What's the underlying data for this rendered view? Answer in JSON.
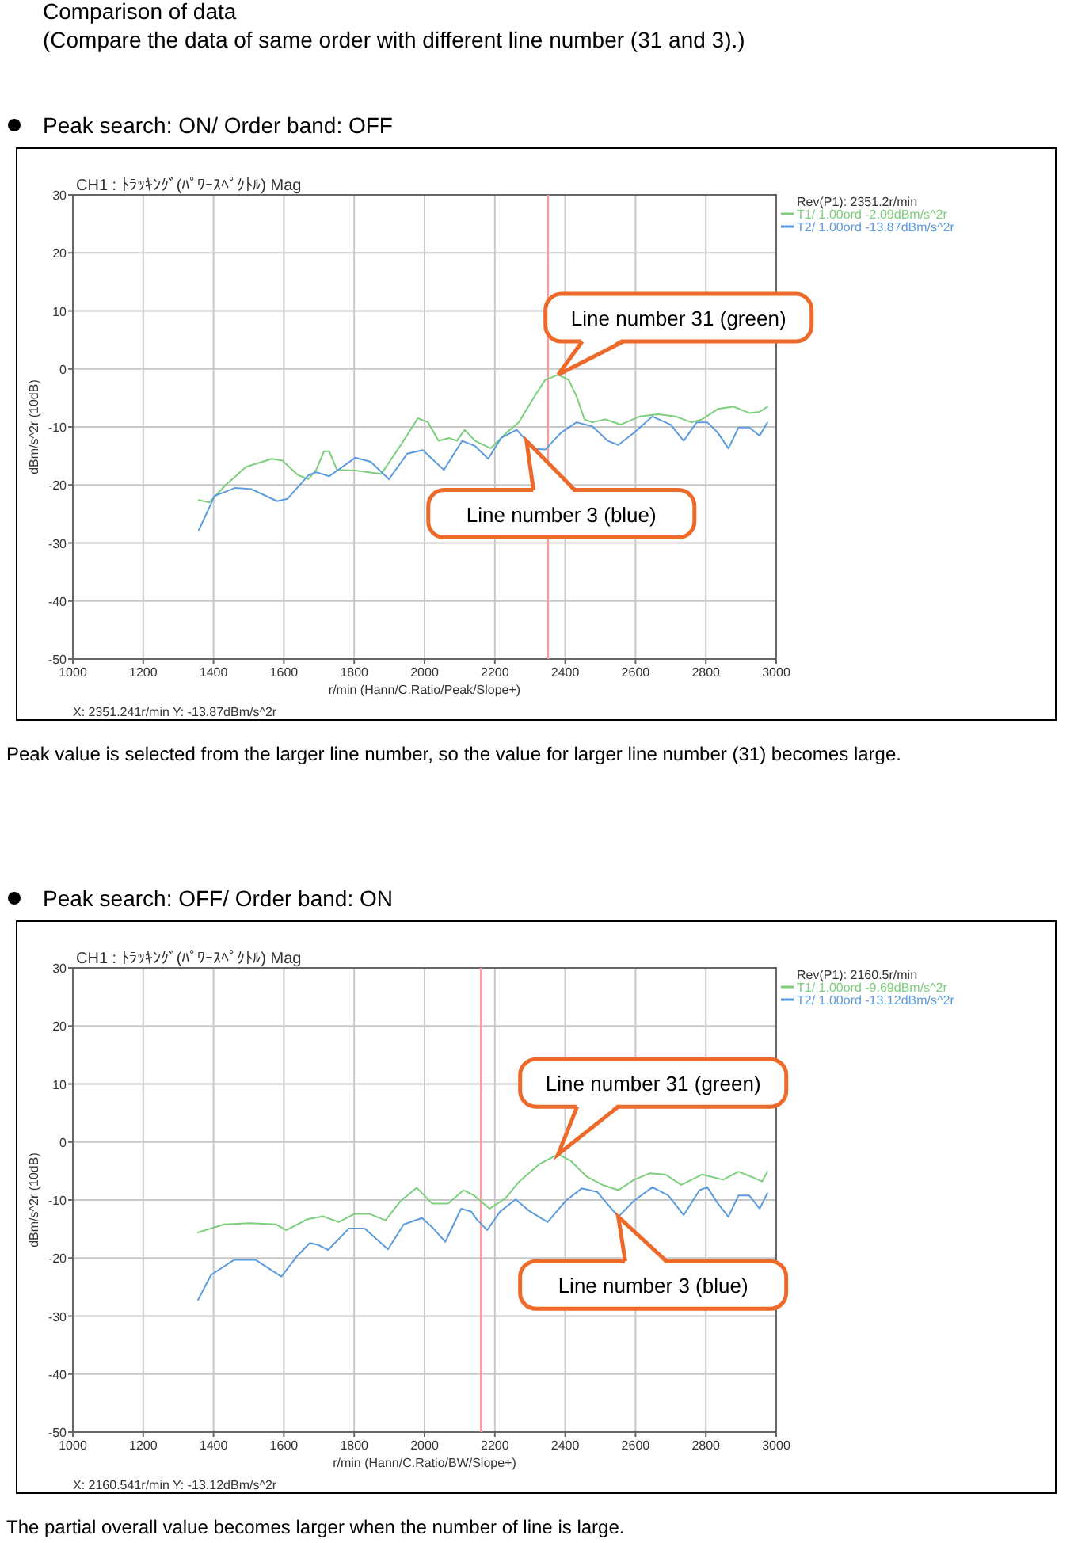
{
  "chart_data": [
    {
      "type": "line",
      "title": "Peak search: ON/ Order band: OFF",
      "subtitle": "CH1 : ﾄﾗｯｷﾝｸﾞ(ﾊﾟﾜｰｽﾍﾟｸﾄﾙ) Mag",
      "xlabel": "r/min (Hann/C.Ratio/Peak/Slope+)",
      "ylabel": "dBm/s^2r (10dB)",
      "legend_title": "Rev(P1): 2351.2r/min",
      "xlim": [
        1000,
        3000
      ],
      "xticks": [
        1000,
        1200,
        1400,
        1600,
        1800,
        2000,
        2200,
        2400,
        2600,
        2800,
        3000
      ],
      "ylim": [
        -50,
        30
      ],
      "yticks": [
        -50,
        -40,
        -30,
        -20,
        -10,
        0,
        10,
        20,
        30
      ],
      "grid": true,
      "legend": "top right",
      "series": [
        {
          "name": "T1/ 1.00ord -2.09dBm/s^2r",
          "color": "#7ccf7c",
          "x": [
            1358,
            1388,
            1433,
            1492,
            1566,
            1596,
            1640,
            1670,
            1692,
            1714,
            1729,
            1751,
            1803,
            1877,
            1936,
            1981,
            2010,
            2040,
            2070,
            2092,
            2114,
            2144,
            2188,
            2233,
            2268,
            2313,
            2343,
            2380,
            2410,
            2432,
            2455,
            2477,
            2514,
            2558,
            2611,
            2663,
            2715,
            2759,
            2789,
            2834,
            2879,
            2923,
            2953,
            2975
          ],
          "values": [
            -22.6,
            -23,
            -20.1,
            -16.9,
            -15.5,
            -15.8,
            -18.3,
            -19,
            -17.4,
            -14.2,
            -14.2,
            -17.4,
            -17.5,
            -18.1,
            -12.8,
            -8.5,
            -9.2,
            -12.4,
            -11.9,
            -12.4,
            -10.5,
            -12.4,
            -13.7,
            -11,
            -9.2,
            -4.7,
            -1.9,
            -1,
            -1.9,
            -4.7,
            -8.7,
            -9.2,
            -8.7,
            -9.6,
            -8.2,
            -7.8,
            -8.2,
            -9.2,
            -8.7,
            -6.9,
            -6.5,
            -7.6,
            -7.4,
            -6.5
          ]
        },
        {
          "name": "T2/ 1.00ord -13.87dBm/s^2r",
          "color": "#5b9be0",
          "x": [
            1358,
            1403,
            1462,
            1507,
            1581,
            1610,
            1670,
            1692,
            1729,
            1803,
            1847,
            1899,
            1951,
            1995,
            2055,
            2107,
            2144,
            2181,
            2218,
            2262,
            2290,
            2313,
            2343,
            2388,
            2432,
            2477,
            2521,
            2551,
            2596,
            2648,
            2700,
            2737,
            2774,
            2804,
            2834,
            2864,
            2893,
            2923,
            2953,
            2975
          ],
          "values": [
            -27.8,
            -21.9,
            -20.5,
            -20.7,
            -22.8,
            -22.4,
            -18.3,
            -17.8,
            -18.5,
            -15.3,
            -16,
            -19,
            -14.6,
            -14,
            -17.4,
            -12.4,
            -13.3,
            -15.5,
            -11.9,
            -10.5,
            -12.4,
            -13.8,
            -13.9,
            -11,
            -9.2,
            -9.9,
            -12.4,
            -13.1,
            -11,
            -8.2,
            -9.6,
            -12.4,
            -9.2,
            -9.2,
            -11,
            -13.7,
            -10.1,
            -10.1,
            -11.5,
            -9.2
          ]
        }
      ],
      "ref_lines": [
        {
          "axis": "x",
          "value": 2351.2,
          "color": "#ff9a9a"
        }
      ],
      "annotations": [
        "Comparison of data",
        "(Compare the data of same order with different line number (31 and 3).)",
        "X: 2351.241r/min Y: -13.87dBm/s^2r",
        "Peak value is selected from the larger line number, so the value for larger line number (31) becomes large.",
        {
          "text": "Line number 31 (green)",
          "x": 2380,
          "y": -1
        },
        {
          "text": "Line number 3 (blue)",
          "x": 2290,
          "y": -12.4
        }
      ]
    },
    {
      "type": "line",
      "title": "Peak search: OFF/ Order band: ON",
      "subtitle": "CH1 : ﾄﾗｯｷﾝｸﾞ(ﾊﾟﾜｰｽﾍﾟｸﾄﾙ) Mag",
      "xlabel": "r/min (Hann/C.Ratio/BW/Slope+)",
      "ylabel": "dBm/s^2r (10dB)",
      "legend_title": "Rev(P1): 2160.5r/min",
      "xlim": [
        1000,
        3000
      ],
      "xticks": [
        1000,
        1200,
        1400,
        1600,
        1800,
        2000,
        2200,
        2400,
        2600,
        2800,
        3000
      ],
      "ylim": [
        -50,
        30
      ],
      "yticks": [
        -50,
        -40,
        -30,
        -20,
        -10,
        0,
        10,
        20,
        30
      ],
      "grid": true,
      "legend": "top right",
      "series": [
        {
          "name": "T1/ 1.00ord -9.69dBm/s^2r",
          "color": "#7ccf7c",
          "x": [
            1356,
            1430,
            1504,
            1578,
            1607,
            1667,
            1711,
            1756,
            1800,
            1844,
            1889,
            1933,
            1978,
            2022,
            2067,
            2111,
            2141,
            2185,
            2230,
            2268,
            2327,
            2380,
            2417,
            2462,
            2506,
            2551,
            2596,
            2640,
            2685,
            2730,
            2789,
            2849,
            2893,
            2930,
            2960,
            2975
          ],
          "values": [
            -15.6,
            -14.2,
            -14,
            -14.2,
            -15.2,
            -13.3,
            -12.8,
            -13.8,
            -12.4,
            -12.4,
            -13.5,
            -10.1,
            -7.9,
            -10.6,
            -10.6,
            -8.3,
            -9.2,
            -11.5,
            -9.7,
            -6.9,
            -3.8,
            -2.1,
            -3.3,
            -6,
            -7.4,
            -8.3,
            -6.5,
            -5.4,
            -5.6,
            -7.4,
            -5.6,
            -6.5,
            -5.1,
            -6,
            -6.8,
            -5.1
          ]
        },
        {
          "name": "T2/ 1.00ord -13.12dBm/s^2r",
          "color": "#5b9be0",
          "x": [
            1356,
            1393,
            1459,
            1519,
            1593,
            1637,
            1674,
            1696,
            1726,
            1785,
            1830,
            1896,
            1941,
            1993,
            2022,
            2059,
            2104,
            2133,
            2148,
            2178,
            2215,
            2259,
            2298,
            2350,
            2402,
            2447,
            2491,
            2551,
            2596,
            2648,
            2693,
            2737,
            2782,
            2804,
            2834,
            2864,
            2893,
            2923,
            2953,
            2975
          ],
          "values": [
            -27.2,
            -22.9,
            -20.3,
            -20.3,
            -23.2,
            -19.7,
            -17.4,
            -17.7,
            -18.6,
            -14.9,
            -14.9,
            -18.5,
            -14.2,
            -13.1,
            -14.7,
            -17.2,
            -11.5,
            -12,
            -13.3,
            -15.2,
            -12,
            -9.9,
            -11.9,
            -13.8,
            -10.1,
            -8,
            -8.6,
            -12.9,
            -10.1,
            -7.8,
            -9.2,
            -12.6,
            -8.3,
            -7.8,
            -10.6,
            -12.9,
            -9.2,
            -9.2,
            -11.5,
            -8.8
          ]
        }
      ],
      "ref_lines": [
        {
          "axis": "x",
          "value": 2160.5,
          "color": "#ff9a9a"
        }
      ],
      "annotations": [
        "X: 2160.541r/min Y: -13.12dBm/s^2r",
        "The partial overall value becomes larger when the number of line is large.",
        {
          "text": "Line number 31 (green)",
          "x": 2380,
          "y": -2.1
        },
        {
          "text": "Line number 3 (blue)",
          "x": 2551,
          "y": -12.9
        }
      ]
    }
  ]
}
